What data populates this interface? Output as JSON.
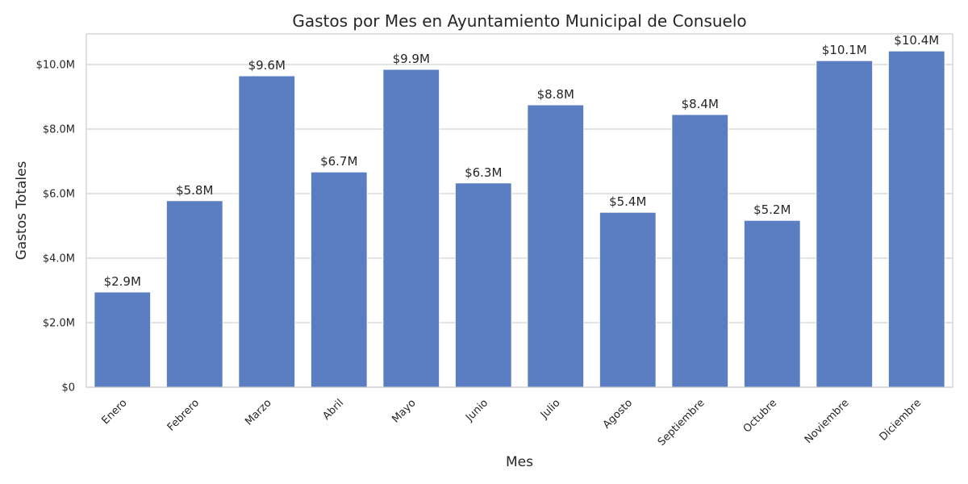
{
  "chart_data": {
    "type": "bar",
    "title": "Gastos por Mes en Ayuntamiento Municipal de Consuelo",
    "xlabel": "Mes",
    "ylabel": "Gastos Totales",
    "categories": [
      "Enero",
      "Febrero",
      "Marzo",
      "Abril",
      "Mayo",
      "Junio",
      "Julio",
      "Agosto",
      "Septiembre",
      "Octubre",
      "Noviembre",
      "Diciembre"
    ],
    "values": [
      2.95,
      5.78,
      9.65,
      6.67,
      9.85,
      6.33,
      8.75,
      5.42,
      8.45,
      5.17,
      10.12,
      10.42
    ],
    "value_labels": [
      "$2.9M",
      "$5.8M",
      "$9.6M",
      "$6.7M",
      "$9.9M",
      "$6.3M",
      "$8.8M",
      "$5.4M",
      "$8.4M",
      "$5.2M",
      "$10.1M",
      "$10.4M"
    ],
    "value_unit": "millones de dólares",
    "ylim": [
      0,
      10.95
    ],
    "yticks": [
      0,
      2,
      4,
      6,
      8,
      10
    ],
    "ytick_labels": [
      "$0",
      "$2.0M",
      "$4.0M",
      "$6.0M",
      "$8.0M",
      "$10.0M"
    ],
    "grid": true,
    "colors": {
      "bar": "#5a7ec1",
      "grid": "#d3d3d3",
      "frame": "#cccccc",
      "text": "#262626"
    }
  }
}
